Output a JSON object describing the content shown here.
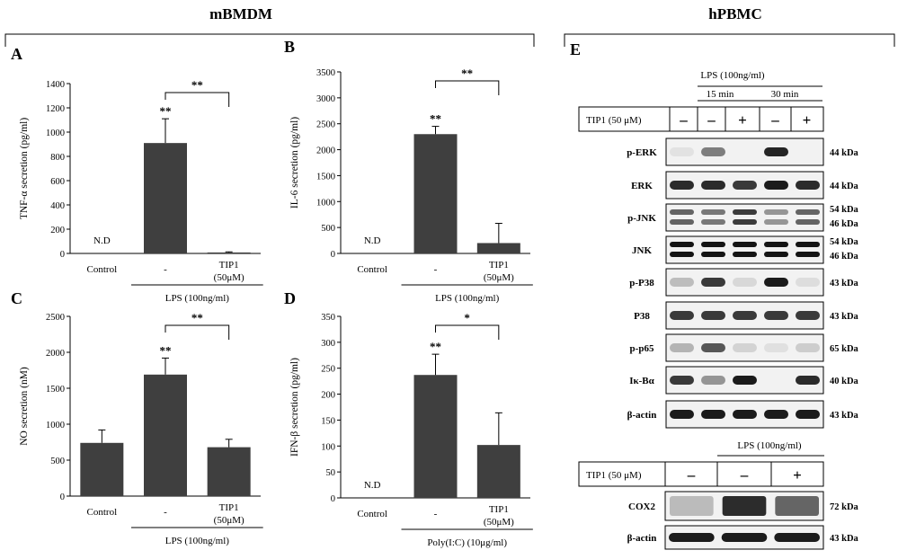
{
  "header_left": "mBMDM",
  "header_right": "hPBMC",
  "chart_data": [
    {
      "type": "bar",
      "panel": "A",
      "ylabel": "TNF-α secretion (pg/ml)",
      "ylim": [
        0,
        1400
      ],
      "yticks": [
        0,
        200,
        400,
        600,
        800,
        1000,
        1200,
        1400
      ],
      "categories": [
        "Control",
        "-",
        "TIP1 (50μM)"
      ],
      "values": [
        0,
        910,
        8
      ],
      "errors": [
        0,
        200,
        5
      ],
      "not_detected": [
        "N.D",
        "",
        ""
      ],
      "bar_marks": [
        "",
        "**",
        ""
      ],
      "bracket": {
        "from": 1,
        "to": 2,
        "label": "**"
      },
      "treatment_label": "LPS (100ng/ml)"
    },
    {
      "type": "bar",
      "panel": "B",
      "ylabel": "IL-6 secretion (pg/ml)",
      "ylim": [
        0,
        3500
      ],
      "yticks": [
        0,
        500,
        1000,
        1500,
        2000,
        2500,
        3000,
        3500
      ],
      "categories": [
        "Control",
        "-",
        "TIP1 (50μM)"
      ],
      "values": [
        0,
        2300,
        200
      ],
      "errors": [
        0,
        150,
        380
      ],
      "not_detected": [
        "N.D",
        "",
        ""
      ],
      "bar_marks": [
        "",
        "**",
        ""
      ],
      "bracket": {
        "from": 1,
        "to": 2,
        "label": "**"
      },
      "treatment_label": "LPS (100ng/ml)"
    },
    {
      "type": "bar",
      "panel": "C",
      "ylabel": "NO secretion (nM)",
      "ylim": [
        0,
        2500
      ],
      "yticks": [
        0,
        500,
        1000,
        1500,
        2000,
        2500
      ],
      "categories": [
        "Control",
        "-",
        "TIP1 (50μM)"
      ],
      "values": [
        740,
        1690,
        680
      ],
      "errors": [
        180,
        230,
        110
      ],
      "not_detected": [
        "",
        "",
        ""
      ],
      "bar_marks": [
        "",
        "**",
        ""
      ],
      "bracket": {
        "from": 1,
        "to": 2,
        "label": "**"
      },
      "treatment_label": "LPS (100ng/ml)"
    },
    {
      "type": "bar",
      "panel": "D",
      "ylabel": "IFN-β secretion (pg/ml)",
      "ylim": [
        0,
        350
      ],
      "yticks": [
        0,
        50,
        100,
        150,
        200,
        250,
        300,
        350
      ],
      "categories": [
        "Control",
        "-",
        "TIP1 (50μM)"
      ],
      "values": [
        0,
        237,
        102
      ],
      "errors": [
        0,
        40,
        62
      ],
      "not_detected": [
        "N.D",
        "",
        ""
      ],
      "bar_marks": [
        "",
        "**",
        ""
      ],
      "bracket": {
        "from": 1,
        "to": 2,
        "label": "*"
      },
      "treatment_label": "Poly(I:C)  (10μg/ml)"
    }
  ],
  "blot_top": {
    "panel": "E",
    "treatment_label": "LPS (100ng/ml)",
    "time_labels": [
      "15 min",
      "30 min"
    ],
    "tip_label": "TIP1 (50 μM)",
    "signs": [
      "–",
      "–",
      "+",
      "–",
      "+"
    ],
    "rows": [
      {
        "label": "p-ERK",
        "kda": [
          "44 kDa"
        ],
        "intensity": [
          0.03,
          0.6,
          0.0,
          0.92,
          0.0
        ]
      },
      {
        "label": "ERK",
        "kda": [
          "44 kDa"
        ],
        "intensity": [
          0.9,
          0.9,
          0.85,
          0.95,
          0.9
        ]
      },
      {
        "label": "p-JNK",
        "kda": [
          "54 kDa",
          "46 kDa"
        ],
        "intensity": [
          0.55,
          0.45,
          0.75,
          0.3,
          0.55
        ]
      },
      {
        "label": "JNK",
        "kda": [
          "54 kDa",
          "46 kDa"
        ],
        "intensity": [
          0.95,
          0.95,
          0.95,
          0.95,
          0.95
        ]
      },
      {
        "label": "p-P38",
        "kda": [
          "43 kDa"
        ],
        "intensity": [
          0.3,
          0.85,
          0.12,
          0.95,
          0.08
        ]
      },
      {
        "label": "P38",
        "kda": [
          "43 kDa"
        ],
        "intensity": [
          0.85,
          0.85,
          0.85,
          0.85,
          0.85
        ]
      },
      {
        "label": "p-p65",
        "kda": [
          "65 kDa"
        ],
        "intensity": [
          0.35,
          0.75,
          0.15,
          0.05,
          0.2
        ]
      },
      {
        "label": "Iκ-Bα",
        "kda": [
          "40 kDa"
        ],
        "intensity": [
          0.85,
          0.5,
          0.95,
          0.0,
          0.9
        ]
      },
      {
        "label": "β-actin",
        "kda": [
          "43 kDa"
        ],
        "intensity": [
          0.95,
          0.95,
          0.95,
          0.95,
          0.95
        ]
      }
    ]
  },
  "blot_bottom": {
    "treatment_label": "LPS (100ng/ml)",
    "tip_label": "TIP1 (50 μM)",
    "signs": [
      "–",
      "–",
      "+"
    ],
    "rows": [
      {
        "label": "COX2",
        "kda": [
          "72 kDa"
        ],
        "intensity": [
          0.15,
          0.9,
          0.6
        ]
      },
      {
        "label": "β-actin",
        "kda": [
          "43 kDa"
        ],
        "intensity": [
          0.95,
          0.95,
          0.95
        ]
      }
    ]
  }
}
